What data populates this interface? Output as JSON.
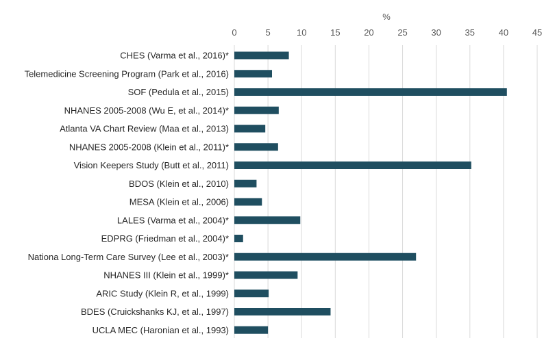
{
  "chart_data": {
    "type": "bar",
    "orientation": "horizontal",
    "xlabel": "%",
    "axis_position": "top",
    "xlim": [
      0,
      45
    ],
    "xticks": [
      0,
      5,
      10,
      15,
      20,
      25,
      30,
      35,
      40,
      45
    ],
    "grid": true,
    "legend": "none",
    "bar_color": "#1f4e60",
    "grid_color": "#d9d9d9",
    "categories": [
      "CHES (Varma et al., 2016)*",
      "Telemedicine Screening Program (Park et al., 2016)",
      "SOF (Pedula et al., 2015)",
      "NHANES 2005-2008 (Wu E, et al., 2014)*",
      "Atlanta VA Chart Review (Maa et al., 2013)",
      "NHANES 2005-2008 (Klein et al., 2011)*",
      "Vision Keepers Study (Butt et al., 2011)",
      "BDOS (Klein et al., 2010)",
      "MESA (Klein et al., 2006)",
      "LALES (Varma et al., 2004)*",
      "EDPRG (Friedman et al., 2004)*",
      "Nationa Long-Term Care Survey (Lee et al., 2003)*",
      "NHANES III (Klein et al., 1999)*",
      "ARIC Study (Klein R, et al., 1999)",
      "BDES (Cruickshanks KJ, et al., 1997)",
      "UCLA MEC (Haronian et al., 1993)"
    ],
    "values": [
      8.1,
      5.6,
      40.5,
      6.6,
      4.6,
      6.5,
      35.2,
      3.3,
      4.1,
      9.8,
      1.3,
      27.0,
      9.4,
      5.1,
      14.3,
      5.0
    ]
  }
}
